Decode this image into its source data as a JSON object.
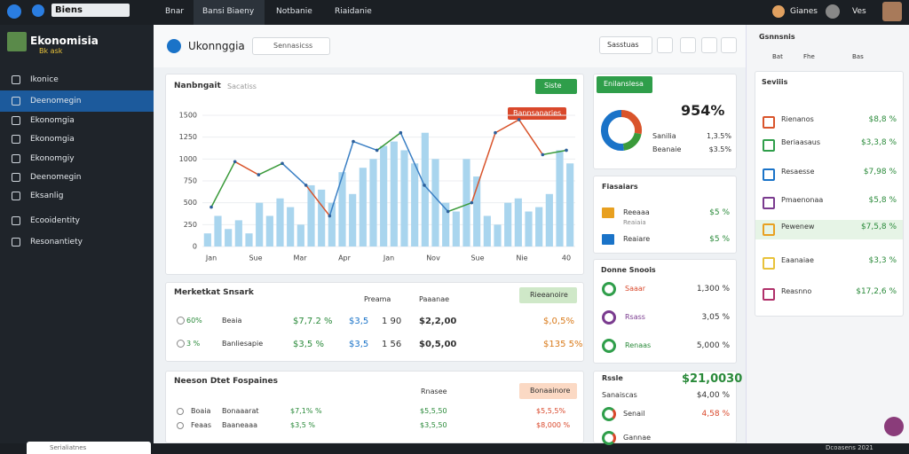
{
  "topbar": {
    "brand": "Biens",
    "tabs": [
      "Bnar",
      "Bansi Biaeny",
      "Notbanie",
      "Riaidanie"
    ],
    "user": "Gianes",
    "right_label": "Ves"
  },
  "sidebar": {
    "title": "Ekonomisia",
    "subtitle": "Bk ask",
    "items": [
      "Ikonice",
      "Deenomegin",
      "Ekonomgia",
      "Ekonomgia",
      "Ekonomgiy",
      "Deenomegin",
      "Eksanlig",
      "Ecooidentity",
      "Resonantiety"
    ]
  },
  "header": {
    "title": "Ukonnggia",
    "search": "Sennasicss",
    "button": "Sasstuas"
  },
  "chart_panel": {
    "title": "Nanbngait",
    "subtitle": "Sacatiss",
    "button": "Siste",
    "annotation": "Bannsanaries",
    "chart_data": {
      "type": "bar",
      "ylim": [
        0,
        1500
      ],
      "yticks": [
        0,
        250,
        500,
        750,
        1000,
        1250,
        1500
      ],
      "grid": true,
      "bar_color": "#a9d5ee",
      "x_labels": [
        "Jan",
        "Sue",
        "Mar",
        "Apr",
        "Jan",
        "Nov",
        "Sue",
        "Nie",
        "40"
      ],
      "bars": [
        150,
        350,
        200,
        300,
        150,
        500,
        350,
        550,
        450,
        250,
        700,
        650,
        500,
        850,
        600,
        900,
        1000,
        1150,
        1200,
        1100,
        950,
        1300,
        1000,
        500,
        400,
        1000,
        800,
        350,
        250,
        500,
        550,
        400,
        450,
        600,
        1100,
        950
      ],
      "line": [
        450,
        970,
        820,
        950,
        700,
        350,
        1200,
        1100,
        1300,
        700,
        400,
        500,
        1300,
        1450,
        1050,
        1100
      ],
      "line_colors": [
        "#3a9a3a",
        "#d9542b",
        "#3a9a3a",
        "#3a7fc4",
        "#d9542b",
        "#3a7fc4",
        "#3a7fc4",
        "#3a9a3a",
        "#3a7fc4",
        "#3a7fc4",
        "#3a9a3a",
        "#d9542b",
        "#d9542b",
        "#d9542b",
        "#3a9a3a"
      ]
    }
  },
  "donut_panel": {
    "button": "Enilanslesa",
    "value": "954%",
    "donut": {
      "values": [
        28,
        20,
        52
      ],
      "colors": [
        "#d9542b",
        "#3a9a3a",
        "#1a73c8"
      ]
    },
    "rows": [
      [
        "Sanilia",
        "1,3.5%"
      ],
      [
        "Beanaie",
        "$3.5%"
      ]
    ]
  },
  "filters_panel": {
    "title": "Fiasaiars",
    "rows": [
      [
        "Reeaaa",
        "$5 %",
        "Reaiaia"
      ],
      [
        "Reaiare",
        "$5 %",
        ""
      ]
    ]
  },
  "stats_panel": {
    "title": "Donne Snoois",
    "rows": [
      [
        "Saaar",
        "1,300 %"
      ],
      [
        "Rsass",
        "3,05 %"
      ],
      [
        "Renaas",
        "5,000 %"
      ]
    ]
  },
  "market_panel": {
    "title": "Merketkat Snsark",
    "headers": [
      "Preama",
      "Paaanae"
    ],
    "button": "Rieeanoire",
    "rows": [
      [
        "60%",
        "Beaia",
        "$7,7.2 %",
        "$3,5",
        "1 90",
        "$2,2,00",
        "$,0,5%"
      ],
      [
        "3 %",
        "Banliesapie",
        "$3,5 %",
        "$3,5",
        "1 56",
        "$0,5,00",
        "$135 5%"
      ]
    ]
  },
  "recent_panel": {
    "title": "Neeson Dtet Fospaines",
    "header": "Rnasee",
    "button": "Bonaainore",
    "rows": [
      [
        "Boaia",
        "Bonaaarat",
        "$7,1% %",
        "$5,5,50",
        "$5,5,5%"
      ],
      [
        "Feaas",
        "Baaneaaa",
        "$3,5 %",
        "$3,5,50",
        "$8,000 %"
      ]
    ]
  },
  "sale_panel": {
    "title": "Rssle",
    "value": "$21,0030",
    "rows": [
      [
        "Sanaiscas",
        "$4,00 %"
      ],
      [
        "Senail",
        "4,58 %"
      ],
      [
        "Gannae",
        ""
      ]
    ]
  },
  "right_panel": {
    "title": "Gsnnsnis",
    "tabs": [
      "Bat",
      "Fhe",
      "Bas"
    ],
    "subtitle": "Seviiis",
    "rows": [
      [
        "Rienanos",
        "$8,8 %"
      ],
      [
        "Beriaasaus",
        "$3,3,8 %"
      ],
      [
        "Resaesse",
        "$7,98 %"
      ],
      [
        "Pmaenonaa",
        "$5,8 %"
      ],
      [
        "Pewenew",
        "$7,5,8 %"
      ],
      [
        "Eaanaiae",
        "$3,3 %"
      ],
      [
        "Reasnno",
        "$17,2,6 %"
      ]
    ]
  },
  "footer": {
    "search": "Serialiatnes",
    "status": "Dcoasens 2021"
  }
}
